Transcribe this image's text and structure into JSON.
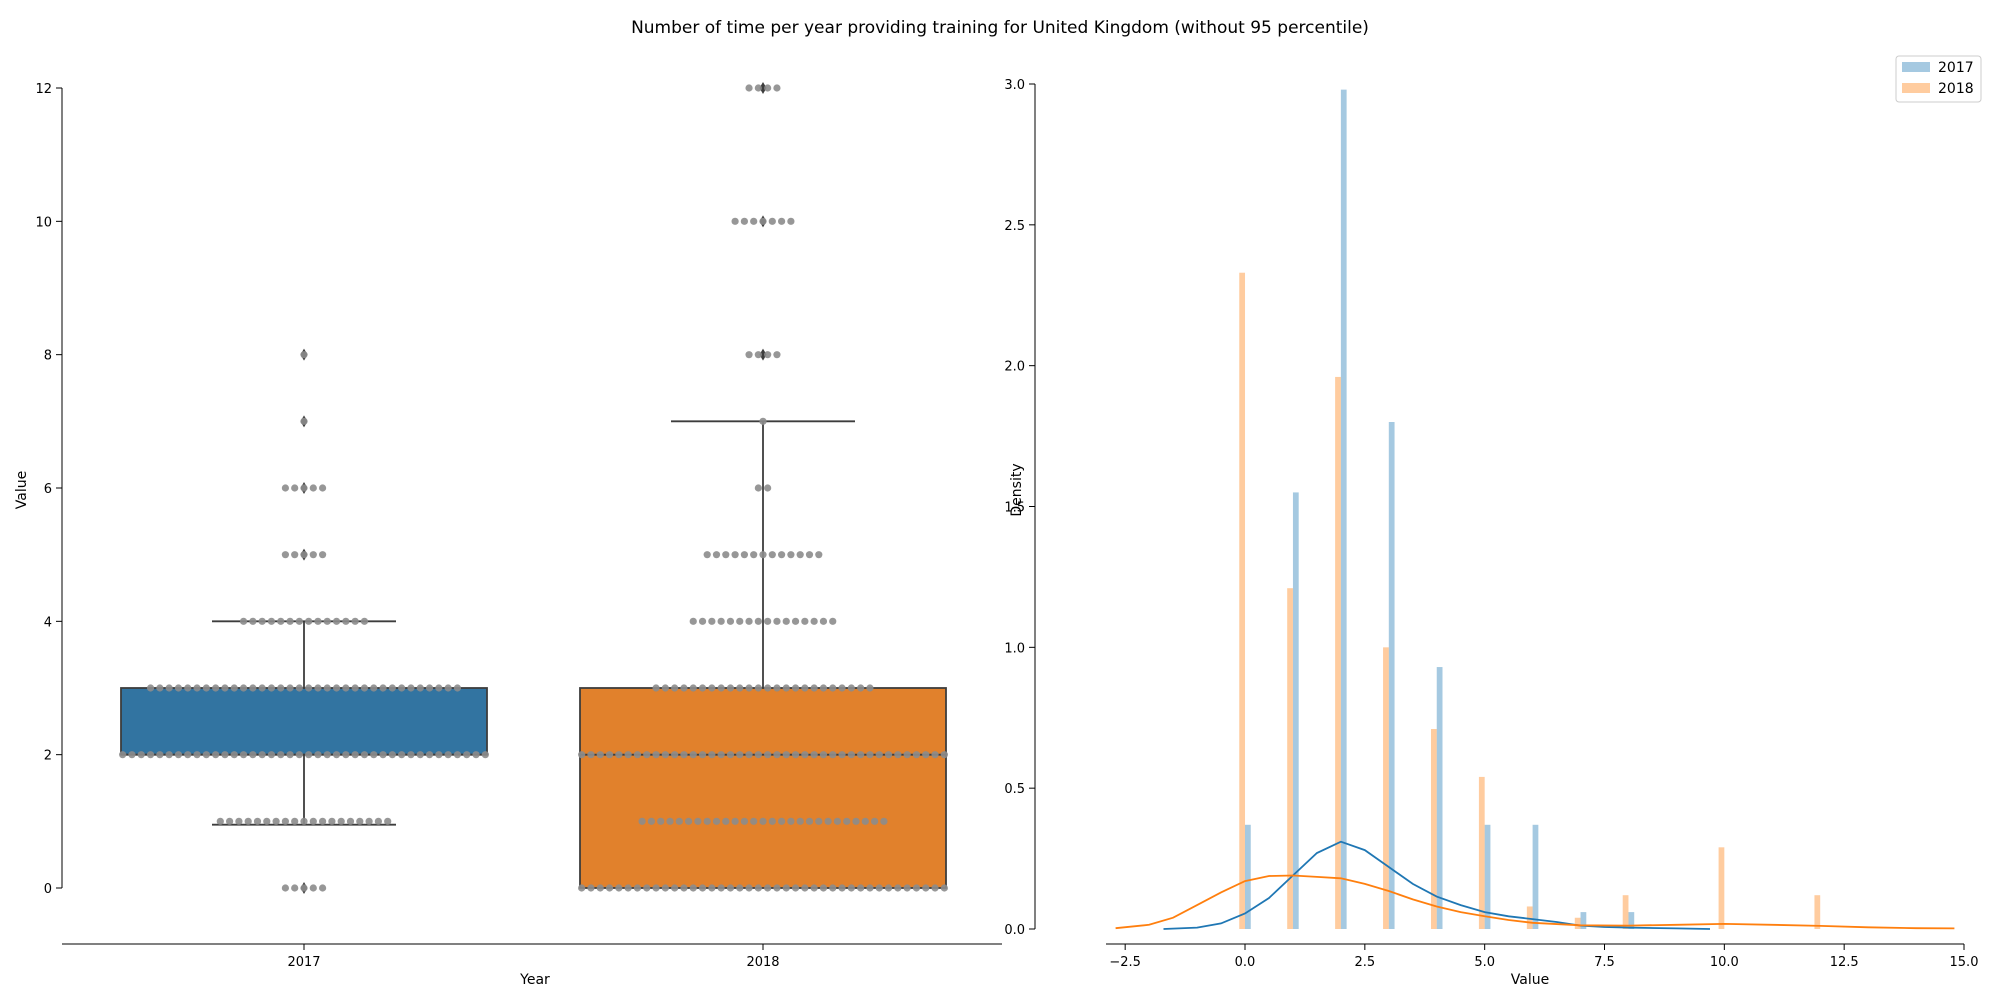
{
  "figure": {
    "title": "Number of time per year providing training for United Kingdom (without 95 percentile)"
  },
  "chart_data": [
    {
      "type": "box",
      "xlabel": "Year",
      "ylabel": "Value",
      "ylim": [
        0,
        12
      ],
      "yticks": [
        "0",
        "2",
        "4",
        "6",
        "8",
        "10",
        "12"
      ],
      "categories": [
        "2017",
        "2018"
      ],
      "boxes": [
        {
          "name": "2017",
          "color": "#3274a1",
          "q1": 2,
          "median": 2,
          "q3": 3,
          "whisker_low": 0.95,
          "whisker_high": 4,
          "outliers": [
            0,
            5,
            6,
            7,
            8
          ]
        },
        {
          "name": "2018",
          "color": "#e1812c",
          "q1": 0,
          "median": 2,
          "q3": 3,
          "whisker_low": 0,
          "whisker_high": 7,
          "outliers": [
            8,
            10,
            12
          ]
        }
      ],
      "swarm": [
        {
          "name": "2017",
          "counts": {
            "0": 5,
            "1": 19,
            "2": 40,
            "3": 34,
            "4": 14,
            "5": 5,
            "6": 5,
            "7": 1,
            "8": 1
          }
        },
        {
          "name": "2018",
          "counts": {
            "0": 40,
            "1": 27,
            "2": 40,
            "3": 24,
            "4": 16,
            "5": 13,
            "6": 2,
            "7": 1,
            "8": 4,
            "10": 7,
            "12": 4
          }
        }
      ],
      "swarm_color": "#8c8c8c"
    },
    {
      "type": "histogram+kde",
      "xlabel": "Value",
      "ylabel": "Density",
      "xlim": [
        -2.9,
        15.0
      ],
      "ylim": [
        0,
        3.0
      ],
      "xticks": [
        "−2.5",
        "0.0",
        "2.5",
        "5.0",
        "7.5",
        "10.0",
        "12.5",
        "15.0"
      ],
      "yticks": [
        "0.0",
        "0.5",
        "1.0",
        "1.5",
        "2.0",
        "2.5",
        "3.0"
      ],
      "bar_width": 0.12,
      "series": [
        {
          "name": "2017",
          "color": "#1f77b4",
          "bars": [
            {
              "x": 0,
              "y": 0.37
            },
            {
              "x": 1,
              "y": 1.55
            },
            {
              "x": 2,
              "y": 2.98
            },
            {
              "x": 3,
              "y": 1.8
            },
            {
              "x": 4,
              "y": 0.93
            },
            {
              "x": 5,
              "y": 0.37
            },
            {
              "x": 6,
              "y": 0.37
            },
            {
              "x": 7,
              "y": 0.06
            },
            {
              "x": 8,
              "y": 0.06
            }
          ],
          "kde": [
            [
              -1.7,
              0.0
            ],
            [
              -1.0,
              0.005
            ],
            [
              -0.5,
              0.02
            ],
            [
              0,
              0.055
            ],
            [
              0.5,
              0.11
            ],
            [
              1.0,
              0.19
            ],
            [
              1.5,
              0.27
            ],
            [
              2.0,
              0.31
            ],
            [
              2.5,
              0.28
            ],
            [
              3.0,
              0.22
            ],
            [
              3.5,
              0.16
            ],
            [
              4.0,
              0.115
            ],
            [
              4.5,
              0.085
            ],
            [
              5.0,
              0.06
            ],
            [
              5.5,
              0.045
            ],
            [
              6.0,
              0.035
            ],
            [
              6.5,
              0.025
            ],
            [
              7.0,
              0.012
            ],
            [
              7.5,
              0.007
            ],
            [
              8.0,
              0.005
            ],
            [
              9.0,
              0.002
            ],
            [
              9.7,
              0.0
            ]
          ]
        },
        {
          "name": "2018",
          "color": "#ff7f0e",
          "bars": [
            {
              "x": 0,
              "y": 2.33
            },
            {
              "x": 1,
              "y": 1.21
            },
            {
              "x": 2,
              "y": 1.96
            },
            {
              "x": 3,
              "y": 1.0
            },
            {
              "x": 4,
              "y": 0.71
            },
            {
              "x": 5,
              "y": 0.54
            },
            {
              "x": 6,
              "y": 0.08
            },
            {
              "x": 7,
              "y": 0.04
            },
            {
              "x": 8,
              "y": 0.12
            },
            {
              "x": 10,
              "y": 0.29
            },
            {
              "x": 12,
              "y": 0.12
            }
          ],
          "kde": [
            [
              -2.7,
              0.003
            ],
            [
              -2.0,
              0.015
            ],
            [
              -1.5,
              0.04
            ],
            [
              -1.0,
              0.085
            ],
            [
              -0.5,
              0.13
            ],
            [
              0,
              0.17
            ],
            [
              0.5,
              0.188
            ],
            [
              1.0,
              0.19
            ],
            [
              1.5,
              0.185
            ],
            [
              2.0,
              0.18
            ],
            [
              2.5,
              0.16
            ],
            [
              3.0,
              0.135
            ],
            [
              3.5,
              0.105
            ],
            [
              4.0,
              0.08
            ],
            [
              4.5,
              0.06
            ],
            [
              5.0,
              0.045
            ],
            [
              5.5,
              0.032
            ],
            [
              6.0,
              0.022
            ],
            [
              7.0,
              0.013
            ],
            [
              8.0,
              0.012
            ],
            [
              9.0,
              0.015
            ],
            [
              10.0,
              0.018
            ],
            [
              11.0,
              0.015
            ],
            [
              12.0,
              0.011
            ],
            [
              13.0,
              0.006
            ],
            [
              14.0,
              0.003
            ],
            [
              14.8,
              0.002
            ]
          ]
        }
      ],
      "legend": {
        "placement": "top-right",
        "entries": [
          "2017",
          "2018"
        ]
      }
    }
  ]
}
